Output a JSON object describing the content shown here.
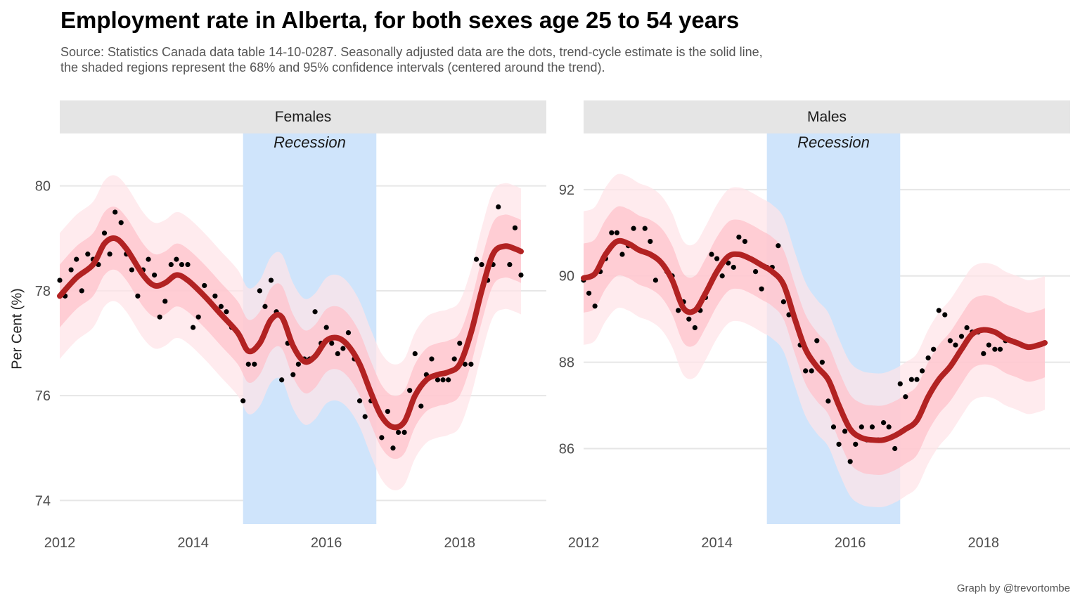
{
  "title": "Employment rate in Alberta, for both sexes age 25 to 54 years",
  "subtitle_line1": "Source: Statistics Canada data table 14-10-0287. Seasonally adjusted data are the dots, trend-cycle estimate is the solid line,",
  "subtitle_line2": "the shaded regions represent the 68% and 95% confidence intervals (centered around the trend).",
  "ylabel": "Per Cent (%)",
  "caption": "Graph by @trevortombe",
  "colors": {
    "trend": "#b22222",
    "ci68": "#ffc0cb",
    "ci95": "#ffe3e8",
    "recession": "#cfe4fb",
    "grid": "#e6e6e6",
    "dots": "#000000"
  },
  "chart_data": [
    {
      "type": "line",
      "facet": "Females",
      "xlim": [
        2012,
        2019.3
      ],
      "ylim": [
        73.55,
        81.0
      ],
      "x_ticks": [
        2012,
        2014,
        2016,
        2018
      ],
      "y_ticks": [
        74,
        76,
        78,
        80
      ],
      "recession": {
        "label": "Recession",
        "start": 2014.75,
        "end": 2016.75
      },
      "ci68_halfwidth": 0.6,
      "ci95_halfwidth": 1.2,
      "trend": [
        [
          2012.0,
          77.9
        ],
        [
          2012.25,
          78.25
        ],
        [
          2012.5,
          78.5
        ],
        [
          2012.67,
          78.9
        ],
        [
          2012.83,
          79.0
        ],
        [
          2013.0,
          78.8
        ],
        [
          2013.25,
          78.3
        ],
        [
          2013.42,
          78.1
        ],
        [
          2013.58,
          78.15
        ],
        [
          2013.75,
          78.3
        ],
        [
          2013.92,
          78.2
        ],
        [
          2014.17,
          77.9
        ],
        [
          2014.42,
          77.55
        ],
        [
          2014.67,
          77.2
        ],
        [
          2014.83,
          76.85
        ],
        [
          2015.0,
          77.0
        ],
        [
          2015.17,
          77.45
        ],
        [
          2015.33,
          77.5
        ],
        [
          2015.5,
          76.95
        ],
        [
          2015.67,
          76.65
        ],
        [
          2015.83,
          76.75
        ],
        [
          2016.0,
          77.05
        ],
        [
          2016.17,
          77.1
        ],
        [
          2016.33,
          76.95
        ],
        [
          2016.5,
          76.6
        ],
        [
          2016.67,
          76.05
        ],
        [
          2016.83,
          75.6
        ],
        [
          2017.0,
          75.4
        ],
        [
          2017.17,
          75.5
        ],
        [
          2017.33,
          76.0
        ],
        [
          2017.5,
          76.3
        ],
        [
          2017.67,
          76.4
        ],
        [
          2017.83,
          76.45
        ],
        [
          2018.0,
          76.6
        ],
        [
          2018.17,
          77.2
        ],
        [
          2018.33,
          78.0
        ],
        [
          2018.5,
          78.7
        ],
        [
          2018.67,
          78.85
        ],
        [
          2018.83,
          78.8
        ],
        [
          2018.92,
          78.75
        ]
      ],
      "points": [
        [
          2012.0,
          78.2
        ],
        [
          2012.08,
          77.9
        ],
        [
          2012.17,
          78.4
        ],
        [
          2012.25,
          78.6
        ],
        [
          2012.33,
          78.0
        ],
        [
          2012.42,
          78.7
        ],
        [
          2012.5,
          78.6
        ],
        [
          2012.58,
          78.5
        ],
        [
          2012.67,
          79.1
        ],
        [
          2012.75,
          78.7
        ],
        [
          2012.83,
          79.5
        ],
        [
          2012.92,
          79.3
        ],
        [
          2013.0,
          78.7
        ],
        [
          2013.08,
          78.4
        ],
        [
          2013.17,
          77.9
        ],
        [
          2013.25,
          78.4
        ],
        [
          2013.33,
          78.6
        ],
        [
          2013.42,
          78.3
        ],
        [
          2013.5,
          77.5
        ],
        [
          2013.58,
          77.8
        ],
        [
          2013.67,
          78.5
        ],
        [
          2013.75,
          78.6
        ],
        [
          2013.83,
          78.5
        ],
        [
          2013.92,
          78.5
        ],
        [
          2014.0,
          77.3
        ],
        [
          2014.08,
          77.5
        ],
        [
          2014.17,
          78.1
        ],
        [
          2014.25,
          77.8
        ],
        [
          2014.33,
          77.9
        ],
        [
          2014.42,
          77.7
        ],
        [
          2014.5,
          77.6
        ],
        [
          2014.58,
          77.3
        ],
        [
          2014.67,
          77.2
        ],
        [
          2014.75,
          75.9
        ],
        [
          2014.83,
          76.6
        ],
        [
          2014.92,
          76.6
        ],
        [
          2015.0,
          78.0
        ],
        [
          2015.08,
          77.7
        ],
        [
          2015.17,
          78.2
        ],
        [
          2015.25,
          77.6
        ],
        [
          2015.33,
          76.3
        ],
        [
          2015.42,
          77.0
        ],
        [
          2015.5,
          76.4
        ],
        [
          2015.58,
          76.6
        ],
        [
          2015.67,
          76.7
        ],
        [
          2015.75,
          76.7
        ],
        [
          2015.83,
          77.6
        ],
        [
          2015.92,
          77.0
        ],
        [
          2016.0,
          77.3
        ],
        [
          2016.08,
          77.0
        ],
        [
          2016.17,
          76.8
        ],
        [
          2016.25,
          76.9
        ],
        [
          2016.33,
          77.2
        ],
        [
          2016.42,
          76.7
        ],
        [
          2016.5,
          75.9
        ],
        [
          2016.58,
          75.6
        ],
        [
          2016.67,
          75.9
        ],
        [
          2016.75,
          75.8
        ],
        [
          2016.83,
          75.2
        ],
        [
          2016.92,
          75.7
        ],
        [
          2017.0,
          75.0
        ],
        [
          2017.08,
          75.3
        ],
        [
          2017.17,
          75.3
        ],
        [
          2017.25,
          76.1
        ],
        [
          2017.33,
          76.8
        ],
        [
          2017.42,
          75.8
        ],
        [
          2017.5,
          76.4
        ],
        [
          2017.58,
          76.7
        ],
        [
          2017.67,
          76.3
        ],
        [
          2017.75,
          76.3
        ],
        [
          2017.83,
          76.3
        ],
        [
          2017.92,
          76.7
        ],
        [
          2018.0,
          77.0
        ],
        [
          2018.08,
          76.6
        ],
        [
          2018.17,
          76.6
        ],
        [
          2018.25,
          78.6
        ],
        [
          2018.33,
          78.5
        ],
        [
          2018.42,
          78.2
        ],
        [
          2018.5,
          78.5
        ],
        [
          2018.58,
          79.6
        ],
        [
          2018.75,
          78.5
        ],
        [
          2018.83,
          79.2
        ],
        [
          2018.92,
          78.3
        ]
      ]
    },
    {
      "type": "line",
      "facet": "Males",
      "xlim": [
        2012,
        2019.3
      ],
      "ylim": [
        84.25,
        93.3
      ],
      "x_ticks": [
        2012,
        2014,
        2016,
        2018
      ],
      "y_ticks": [
        86,
        88,
        90,
        92
      ],
      "recession": {
        "label": "Recession",
        "start": 2014.75,
        "end": 2016.75
      },
      "ci68_halfwidth": 0.8,
      "ci95_halfwidth": 1.55,
      "trend": [
        [
          2012.0,
          89.95
        ],
        [
          2012.17,
          90.05
        ],
        [
          2012.33,
          90.5
        ],
        [
          2012.5,
          90.8
        ],
        [
          2012.67,
          90.75
        ],
        [
          2012.83,
          90.6
        ],
        [
          2013.0,
          90.5
        ],
        [
          2013.17,
          90.3
        ],
        [
          2013.33,
          89.9
        ],
        [
          2013.5,
          89.25
        ],
        [
          2013.67,
          89.2
        ],
        [
          2013.83,
          89.6
        ],
        [
          2014.0,
          90.1
        ],
        [
          2014.17,
          90.45
        ],
        [
          2014.33,
          90.5
        ],
        [
          2014.5,
          90.4
        ],
        [
          2014.67,
          90.25
        ],
        [
          2014.83,
          90.1
        ],
        [
          2015.0,
          89.8
        ],
        [
          2015.17,
          89.0
        ],
        [
          2015.33,
          88.3
        ],
        [
          2015.5,
          87.9
        ],
        [
          2015.67,
          87.6
        ],
        [
          2015.83,
          87.0
        ],
        [
          2016.0,
          86.45
        ],
        [
          2016.17,
          86.25
        ],
        [
          2016.33,
          86.2
        ],
        [
          2016.5,
          86.2
        ],
        [
          2016.67,
          86.3
        ],
        [
          2016.83,
          86.45
        ],
        [
          2017.0,
          86.65
        ],
        [
          2017.17,
          87.2
        ],
        [
          2017.33,
          87.6
        ],
        [
          2017.5,
          87.9
        ],
        [
          2017.67,
          88.3
        ],
        [
          2017.83,
          88.65
        ],
        [
          2018.0,
          88.75
        ],
        [
          2018.17,
          88.7
        ],
        [
          2018.33,
          88.55
        ],
        [
          2018.5,
          88.45
        ],
        [
          2018.67,
          88.35
        ],
        [
          2018.83,
          88.4
        ],
        [
          2018.92,
          88.45
        ]
      ],
      "points": [
        [
          2012.0,
          89.9
        ],
        [
          2012.08,
          89.6
        ],
        [
          2012.17,
          89.3
        ],
        [
          2012.25,
          90.1
        ],
        [
          2012.33,
          90.4
        ],
        [
          2012.42,
          91.0
        ],
        [
          2012.5,
          91.0
        ],
        [
          2012.58,
          90.5
        ],
        [
          2012.67,
          90.7
        ],
        [
          2012.75,
          91.1
        ],
        [
          2012.83,
          90.6
        ],
        [
          2012.92,
          91.1
        ],
        [
          2013.0,
          90.8
        ],
        [
          2013.08,
          89.9
        ],
        [
          2013.17,
          90.3
        ],
        [
          2013.25,
          90.1
        ],
        [
          2013.33,
          90.0
        ],
        [
          2013.42,
          89.2
        ],
        [
          2013.5,
          89.4
        ],
        [
          2013.58,
          89.0
        ],
        [
          2013.67,
          88.8
        ],
        [
          2013.75,
          89.2
        ],
        [
          2013.83,
          89.5
        ],
        [
          2013.92,
          90.5
        ],
        [
          2014.0,
          90.4
        ],
        [
          2014.08,
          90.0
        ],
        [
          2014.17,
          90.3
        ],
        [
          2014.25,
          90.2
        ],
        [
          2014.33,
          90.9
        ],
        [
          2014.42,
          90.8
        ],
        [
          2014.5,
          90.4
        ],
        [
          2014.58,
          90.1
        ],
        [
          2014.67,
          89.7
        ],
        [
          2014.75,
          90.2
        ],
        [
          2014.83,
          90.2
        ],
        [
          2014.92,
          90.7
        ],
        [
          2015.0,
          89.4
        ],
        [
          2015.08,
          89.1
        ],
        [
          2015.17,
          89.0
        ],
        [
          2015.25,
          88.4
        ],
        [
          2015.33,
          87.8
        ],
        [
          2015.42,
          87.8
        ],
        [
          2015.5,
          88.5
        ],
        [
          2015.58,
          88.0
        ],
        [
          2015.67,
          87.1
        ],
        [
          2015.75,
          86.5
        ],
        [
          2015.83,
          86.1
        ],
        [
          2015.92,
          86.4
        ],
        [
          2016.0,
          85.7
        ],
        [
          2016.08,
          86.1
        ],
        [
          2016.17,
          86.5
        ],
        [
          2016.25,
          86.2
        ],
        [
          2016.33,
          86.5
        ],
        [
          2016.42,
          86.2
        ],
        [
          2016.5,
          86.6
        ],
        [
          2016.58,
          86.5
        ],
        [
          2016.67,
          86.0
        ],
        [
          2016.75,
          87.5
        ],
        [
          2016.83,
          87.2
        ],
        [
          2016.92,
          87.6
        ],
        [
          2017.0,
          87.6
        ],
        [
          2017.08,
          87.8
        ],
        [
          2017.17,
          88.1
        ],
        [
          2017.25,
          88.3
        ],
        [
          2017.33,
          89.2
        ],
        [
          2017.42,
          89.1
        ],
        [
          2017.5,
          88.5
        ],
        [
          2017.58,
          88.4
        ],
        [
          2017.67,
          88.6
        ],
        [
          2017.75,
          88.8
        ],
        [
          2017.83,
          88.7
        ],
        [
          2017.92,
          88.7
        ],
        [
          2018.0,
          88.2
        ],
        [
          2018.08,
          88.4
        ],
        [
          2018.17,
          88.3
        ],
        [
          2018.25,
          88.3
        ],
        [
          2018.33,
          88.5
        ],
        [
          2018.42,
          88.5
        ]
      ]
    }
  ]
}
